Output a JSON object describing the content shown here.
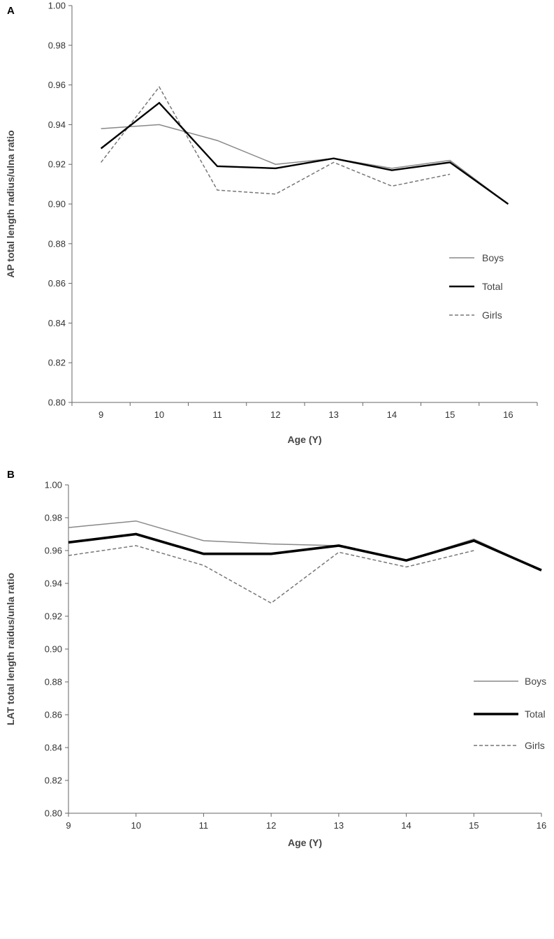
{
  "chart_data": [
    {
      "type": "line",
      "panel_label": "A",
      "xlabel": "Age (Y)",
      "ylabel": "AP total length radius/ulna ratio",
      "ylim": [
        0.8,
        1.0
      ],
      "yticks": [
        "0.80",
        "0.82",
        "0.84",
        "0.86",
        "0.88",
        "0.90",
        "0.92",
        "0.94",
        "0.96",
        "0.98",
        "1.00"
      ],
      "categories": [
        "9",
        "10",
        "11",
        "12",
        "13",
        "14",
        "15",
        "16"
      ],
      "legend_position": "right",
      "series": [
        {
          "name": "Boys",
          "values": [
            0.938,
            0.94,
            0.932,
            0.92,
            0.923,
            0.918,
            0.922,
            0.9
          ],
          "color": "#888888",
          "style": "solid"
        },
        {
          "name": "Total",
          "values": [
            0.928,
            0.951,
            0.919,
            0.918,
            0.923,
            0.917,
            0.921,
            0.9
          ],
          "color": "#000000",
          "style": "solid"
        },
        {
          "name": "Girls",
          "values": [
            0.921,
            0.959,
            0.907,
            0.905,
            0.921,
            0.909,
            0.915,
            null
          ],
          "color": "#777777",
          "style": "dashed"
        }
      ]
    },
    {
      "type": "line",
      "panel_label": "B",
      "xlabel": "Age (Y)",
      "ylabel": "LAT total length raidus/unla ratio",
      "ylim": [
        0.8,
        1.0
      ],
      "yticks": [
        "0.80",
        "0.82",
        "0.84",
        "0.86",
        "0.88",
        "0.90",
        "0.92",
        "0.94",
        "0.96",
        "0.98",
        "1.00"
      ],
      "categories": [
        "9",
        "10",
        "11",
        "12",
        "13",
        "14",
        "15",
        "16"
      ],
      "legend_position": "right",
      "series": [
        {
          "name": "Boys",
          "values": [
            0.974,
            0.978,
            0.966,
            0.964,
            0.963,
            0.954,
            0.967,
            0.948
          ],
          "color": "#888888",
          "style": "solid"
        },
        {
          "name": "Total",
          "values": [
            0.965,
            0.97,
            0.958,
            0.958,
            0.963,
            0.954,
            0.966,
            0.948
          ],
          "color": "#000000",
          "style": "solid"
        },
        {
          "name": "Girls",
          "values": [
            0.957,
            0.963,
            0.951,
            0.928,
            0.959,
            0.95,
            0.96,
            null
          ],
          "color": "#777777",
          "style": "dashed"
        }
      ]
    }
  ]
}
